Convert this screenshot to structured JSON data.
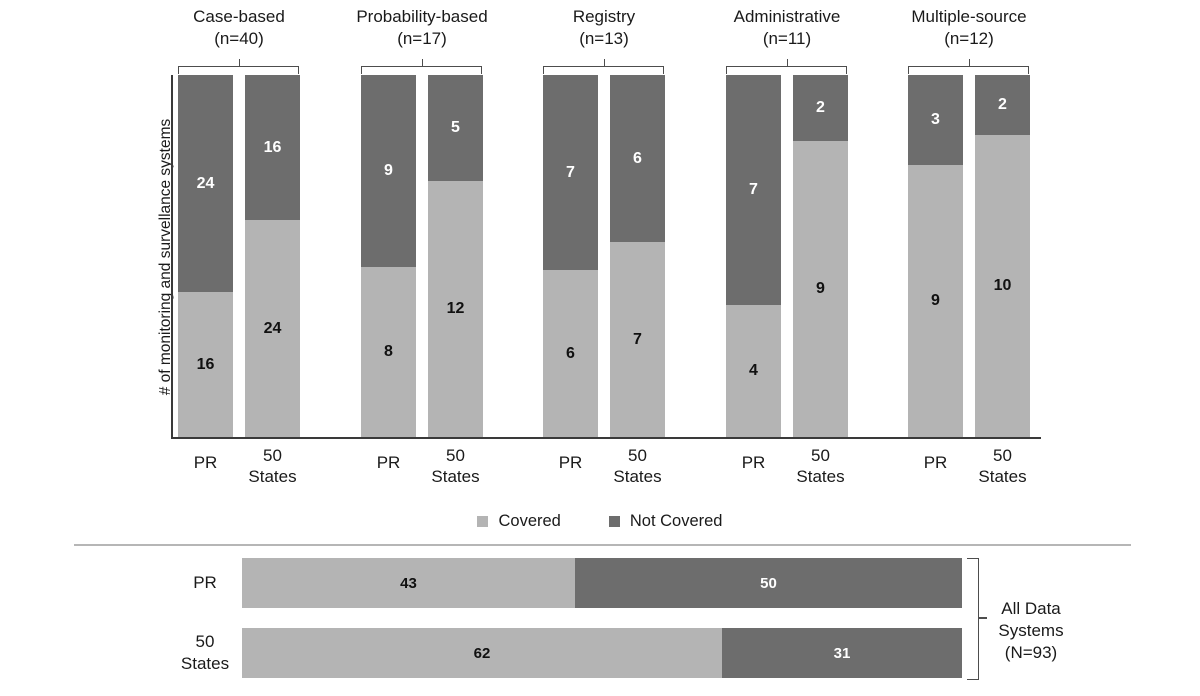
{
  "figure": {
    "ylabel": "# of monitoring and survellance systems",
    "legend": {
      "covered_label": "Covered",
      "not_covered_label": "Not Covered"
    },
    "colors": {
      "covered": "#b4b4b4",
      "not_covered": "#6d6d6d",
      "label_on_light": "#111111",
      "label_on_dark": "#ffffff"
    },
    "bottom_annotation": "All Data Systems (N=93)"
  },
  "chart_data": [
    {
      "type": "bar",
      "variant": "vertical-stacked-proportional",
      "ylabel": "# of monitoring and survellance systems",
      "legend": [
        "Covered",
        "Not Covered"
      ],
      "categories": [
        "PR",
        "50 States"
      ],
      "groups": [
        {
          "title": "Case-based",
          "subtitle": "(n=40)",
          "n": 40,
          "bars": [
            {
              "category": "PR",
              "covered": 16,
              "not_covered": 24
            },
            {
              "category": "50 States",
              "covered": 24,
              "not_covered": 16
            }
          ]
        },
        {
          "title": "Probability-based",
          "subtitle": "(n=17)",
          "n": 17,
          "bars": [
            {
              "category": "PR",
              "covered": 8,
              "not_covered": 9
            },
            {
              "category": "50 States",
              "covered": 12,
              "not_covered": 5
            }
          ]
        },
        {
          "title": "Registry",
          "subtitle": "(n=13)",
          "n": 13,
          "bars": [
            {
              "category": "PR",
              "covered": 6,
              "not_covered": 7
            },
            {
              "category": "50 States",
              "covered": 7,
              "not_covered": 6
            }
          ]
        },
        {
          "title": "Administrative",
          "subtitle": "(n=11)",
          "n": 11,
          "bars": [
            {
              "category": "PR",
              "covered": 4,
              "not_covered": 7
            },
            {
              "category": "50 States",
              "covered": 9,
              "not_covered": 2
            }
          ]
        },
        {
          "title": "Multiple-source",
          "subtitle": "(n=12)",
          "n": 12,
          "bars": [
            {
              "category": "PR",
              "covered": 9,
              "not_covered": 3
            },
            {
              "category": "50 States",
              "covered": 10,
              "not_covered": 2
            }
          ]
        }
      ]
    },
    {
      "type": "bar",
      "variant": "horizontal-stacked",
      "total": 93,
      "annotation": "All Data Systems (N=93)",
      "rows": [
        {
          "label": "PR",
          "covered": 43,
          "not_covered": 50
        },
        {
          "label": "50 States",
          "covered": 62,
          "not_covered": 31
        }
      ]
    }
  ]
}
